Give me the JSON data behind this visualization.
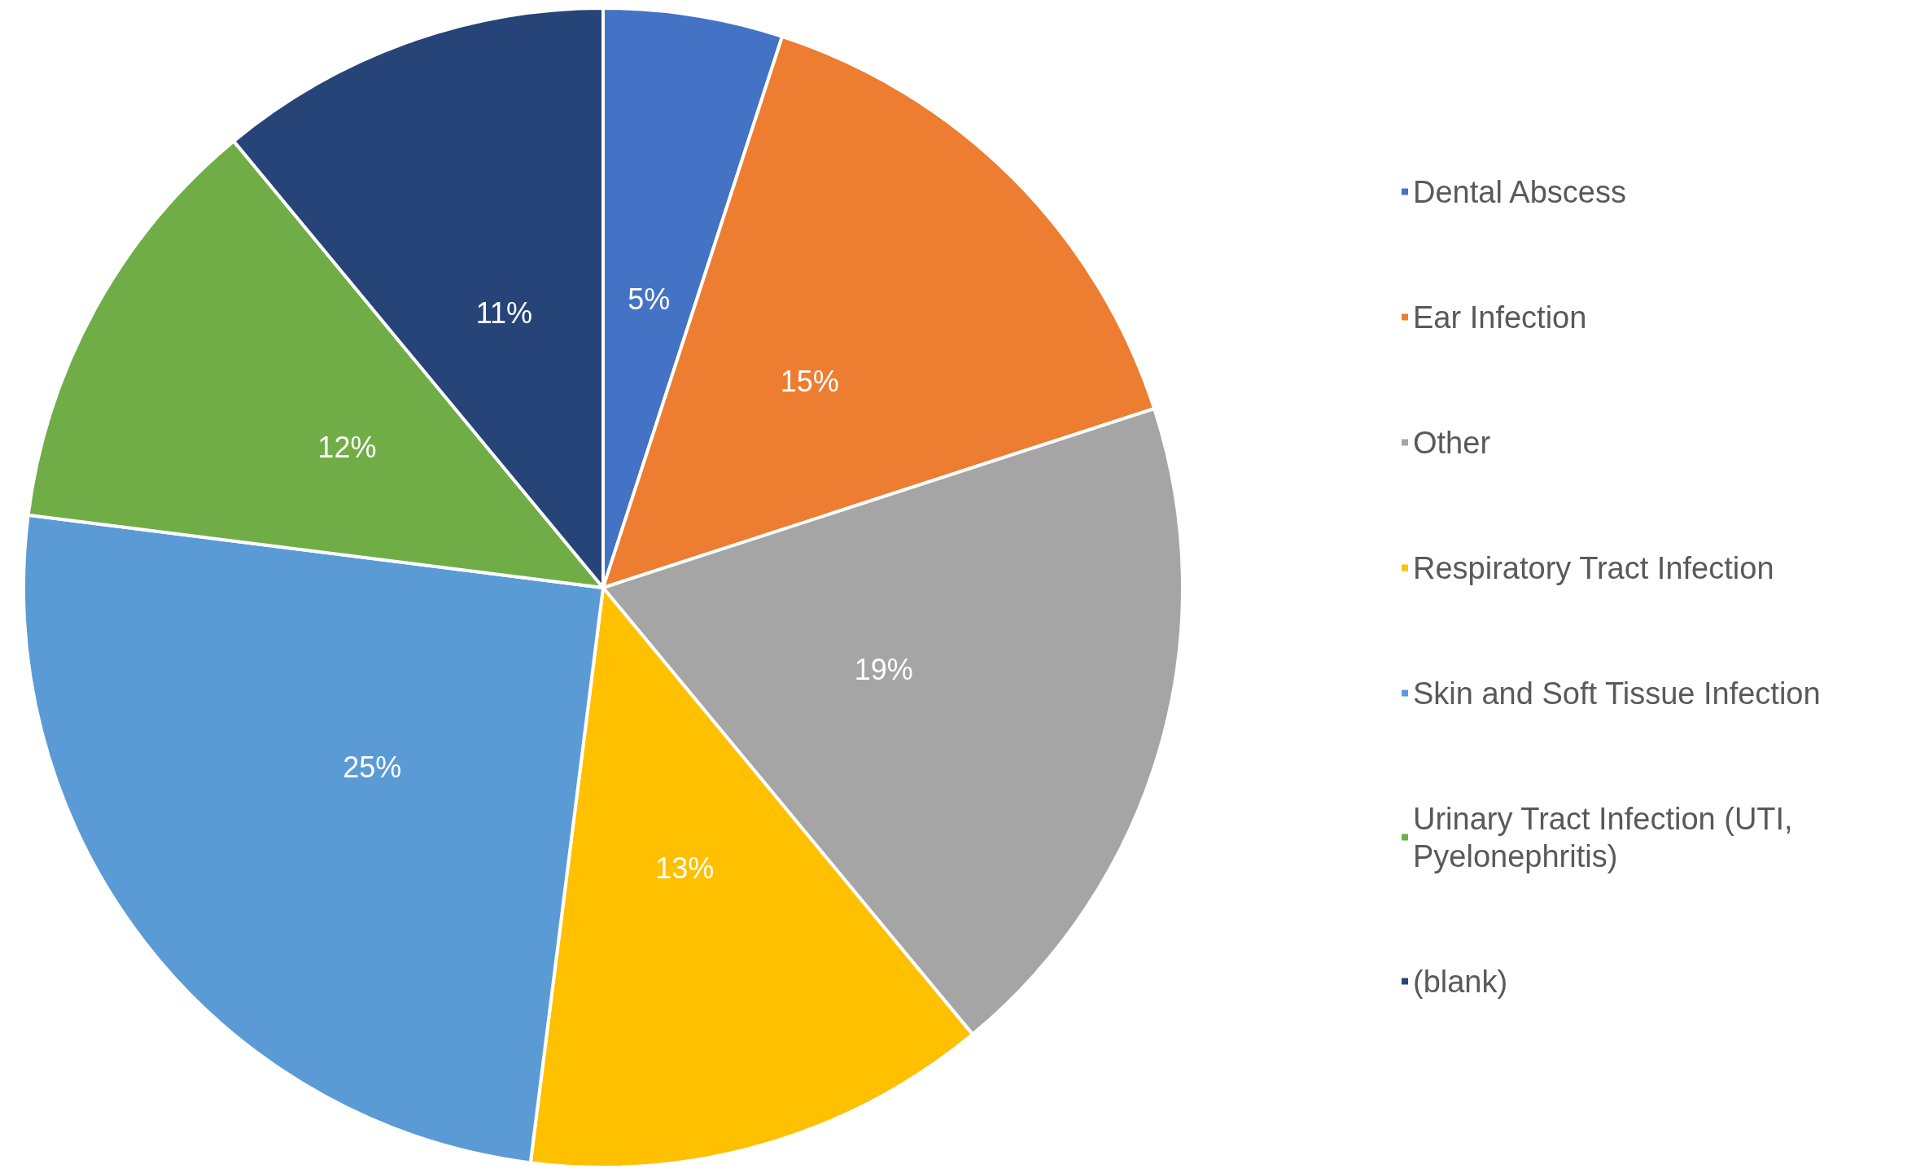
{
  "chart_data": {
    "type": "pie",
    "categories": [
      "Dental Abscess",
      "Ear Infection",
      "Other",
      "Respiratory Tract Infection",
      "Skin and Soft Tissue Infection",
      "Urinary Tract Infection (UTI, Pyelonephritis)",
      "(blank)"
    ],
    "values": [
      5,
      15,
      19,
      13,
      25,
      12,
      11
    ],
    "colors": [
      "#4472c4",
      "#ed7d31",
      "#a5a5a5",
      "#ffc000",
      "#5b9bd5",
      "#70ad47",
      "#264478"
    ],
    "value_labels": [
      "5%",
      "15%",
      "19%",
      "13%",
      "25%",
      "12%",
      "11%"
    ],
    "legend": "right"
  }
}
